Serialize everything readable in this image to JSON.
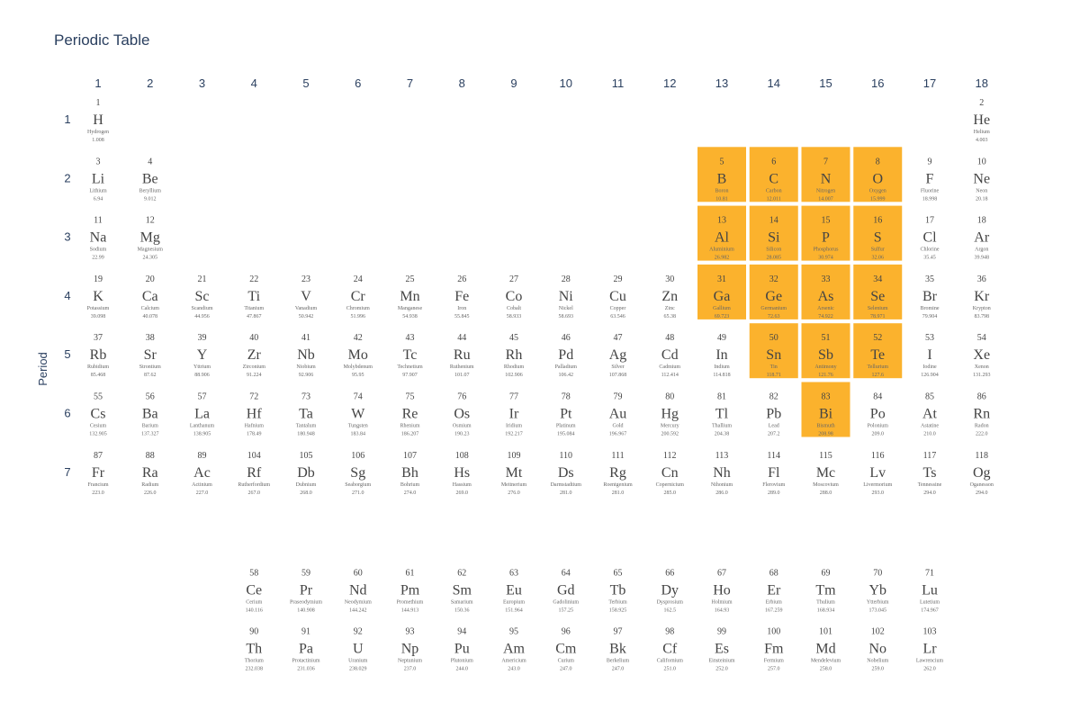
{
  "chart_data": {
    "type": "heatmap",
    "title": "Periodic Table",
    "ylabel": "Period",
    "x_ticks": [
      "1",
      "2",
      "3",
      "4",
      "5",
      "6",
      "7",
      "8",
      "9",
      "10",
      "11",
      "12",
      "13",
      "14",
      "15",
      "16",
      "17",
      "18"
    ],
    "y_ticks": [
      "1",
      "2",
      "3",
      "4",
      "5",
      "6",
      "7"
    ],
    "highlight_color": "#fbb22d",
    "text_color": "#444444",
    "fields": [
      "number",
      "symbol",
      "name",
      "mass",
      "group",
      "period_row",
      "highlighted"
    ],
    "elements": [
      [
        1,
        "H",
        "Hydrogen",
        "1.008",
        1,
        1,
        0
      ],
      [
        2,
        "He",
        "Helium",
        "4.003",
        18,
        1,
        0
      ],
      [
        3,
        "Li",
        "Lithium",
        "6.94",
        1,
        2,
        0
      ],
      [
        4,
        "Be",
        "Beryllium",
        "9.012",
        2,
        2,
        0
      ],
      [
        5,
        "B",
        "Boron",
        "10.81",
        13,
        2,
        1
      ],
      [
        6,
        "C",
        "Carbon",
        "12.011",
        14,
        2,
        1
      ],
      [
        7,
        "N",
        "Nitrogen",
        "14.007",
        15,
        2,
        1
      ],
      [
        8,
        "O",
        "Oxygen",
        "15.999",
        16,
        2,
        1
      ],
      [
        9,
        "F",
        "Fluorine",
        "18.998",
        17,
        2,
        0
      ],
      [
        10,
        "Ne",
        "Neon",
        "20.18",
        18,
        2,
        0
      ],
      [
        11,
        "Na",
        "Sodium",
        "22.99",
        1,
        3,
        0
      ],
      [
        12,
        "Mg",
        "Magnesium",
        "24.305",
        2,
        3,
        0
      ],
      [
        13,
        "Al",
        "Aluminium",
        "26.982",
        13,
        3,
        1
      ],
      [
        14,
        "Si",
        "Silicon",
        "28.085",
        14,
        3,
        1
      ],
      [
        15,
        "P",
        "Phosphorus",
        "30.974",
        15,
        3,
        1
      ],
      [
        16,
        "S",
        "Sulfur",
        "32.06",
        16,
        3,
        1
      ],
      [
        17,
        "Cl",
        "Chlorine",
        "35.45",
        17,
        3,
        0
      ],
      [
        18,
        "Ar",
        "Argon",
        "39.948",
        18,
        3,
        0
      ],
      [
        19,
        "K",
        "Potassium",
        "39.098",
        1,
        4,
        0
      ],
      [
        20,
        "Ca",
        "Calcium",
        "40.078",
        2,
        4,
        0
      ],
      [
        21,
        "Sc",
        "Scandium",
        "44.956",
        3,
        4,
        0
      ],
      [
        22,
        "Ti",
        "Titanium",
        "47.867",
        4,
        4,
        0
      ],
      [
        23,
        "V",
        "Vanadium",
        "50.942",
        5,
        4,
        0
      ],
      [
        24,
        "Cr",
        "Chromium",
        "51.996",
        6,
        4,
        0
      ],
      [
        25,
        "Mn",
        "Manganese",
        "54.938",
        7,
        4,
        0
      ],
      [
        26,
        "Fe",
        "Iron",
        "55.845",
        8,
        4,
        0
      ],
      [
        27,
        "Co",
        "Cobalt",
        "58.933",
        9,
        4,
        0
      ],
      [
        28,
        "Ni",
        "Nickel",
        "58.693",
        10,
        4,
        0
      ],
      [
        29,
        "Cu",
        "Copper",
        "63.546",
        11,
        4,
        0
      ],
      [
        30,
        "Zn",
        "Zinc",
        "65.38",
        12,
        4,
        0
      ],
      [
        31,
        "Ga",
        "Gallium",
        "69.723",
        13,
        4,
        1
      ],
      [
        32,
        "Ge",
        "Germanium",
        "72.63",
        14,
        4,
        1
      ],
      [
        33,
        "As",
        "Arsenic",
        "74.922",
        15,
        4,
        1
      ],
      [
        34,
        "Se",
        "Selenium",
        "78.971",
        16,
        4,
        1
      ],
      [
        35,
        "Br",
        "Bromine",
        "79.904",
        17,
        4,
        0
      ],
      [
        36,
        "Kr",
        "Krypton",
        "83.798",
        18,
        4,
        0
      ],
      [
        37,
        "Rb",
        "Rubidium",
        "85.468",
        1,
        5,
        0
      ],
      [
        38,
        "Sr",
        "Strontium",
        "87.62",
        2,
        5,
        0
      ],
      [
        39,
        "Y",
        "Yttrium",
        "88.906",
        3,
        5,
        0
      ],
      [
        40,
        "Zr",
        "Zirconium",
        "91.224",
        4,
        5,
        0
      ],
      [
        41,
        "Nb",
        "Niobium",
        "92.906",
        5,
        5,
        0
      ],
      [
        42,
        "Mo",
        "Molybdenum",
        "95.95",
        6,
        5,
        0
      ],
      [
        43,
        "Tc",
        "Technetium",
        "97.907",
        7,
        5,
        0
      ],
      [
        44,
        "Ru",
        "Ruthenium",
        "101.07",
        8,
        5,
        0
      ],
      [
        45,
        "Rh",
        "Rhodium",
        "102.906",
        9,
        5,
        0
      ],
      [
        46,
        "Pd",
        "Palladium",
        "106.42",
        10,
        5,
        0
      ],
      [
        47,
        "Ag",
        "Silver",
        "107.868",
        11,
        5,
        0
      ],
      [
        48,
        "Cd",
        "Cadmium",
        "112.414",
        12,
        5,
        0
      ],
      [
        49,
        "In",
        "Indium",
        "114.818",
        13,
        5,
        0
      ],
      [
        50,
        "Sn",
        "Tin",
        "118.71",
        14,
        5,
        1
      ],
      [
        51,
        "Sb",
        "Antimony",
        "121.76",
        15,
        5,
        1
      ],
      [
        52,
        "Te",
        "Tellurium",
        "127.6",
        16,
        5,
        1
      ],
      [
        53,
        "I",
        "Iodine",
        "126.904",
        17,
        5,
        0
      ],
      [
        54,
        "Xe",
        "Xenon",
        "131.293",
        18,
        5,
        0
      ],
      [
        55,
        "Cs",
        "Cesium",
        "132.905",
        1,
        6,
        0
      ],
      [
        56,
        "Ba",
        "Barium",
        "137.327",
        2,
        6,
        0
      ],
      [
        57,
        "La",
        "Lanthanum",
        "138.905",
        3,
        6,
        0
      ],
      [
        72,
        "Hf",
        "Hafnium",
        "178.49",
        4,
        6,
        0
      ],
      [
        73,
        "Ta",
        "Tantalum",
        "180.948",
        5,
        6,
        0
      ],
      [
        74,
        "W",
        "Tungsten",
        "183.84",
        6,
        6,
        0
      ],
      [
        75,
        "Re",
        "Rhenium",
        "186.207",
        7,
        6,
        0
      ],
      [
        76,
        "Os",
        "Osmium",
        "190.23",
        8,
        6,
        0
      ],
      [
        77,
        "Ir",
        "Iridium",
        "192.217",
        9,
        6,
        0
      ],
      [
        78,
        "Pt",
        "Platinum",
        "195.084",
        10,
        6,
        0
      ],
      [
        79,
        "Au",
        "Gold",
        "196.967",
        11,
        6,
        0
      ],
      [
        80,
        "Hg",
        "Mercury",
        "200.592",
        12,
        6,
        0
      ],
      [
        81,
        "Tl",
        "Thallium",
        "204.38",
        13,
        6,
        0
      ],
      [
        82,
        "Pb",
        "Lead",
        "207.2",
        14,
        6,
        0
      ],
      [
        83,
        "Bi",
        "Bismuth",
        "208.98",
        15,
        6,
        1
      ],
      [
        84,
        "Po",
        "Polonium",
        "209.0",
        16,
        6,
        0
      ],
      [
        85,
        "At",
        "Astatine",
        "210.0",
        17,
        6,
        0
      ],
      [
        86,
        "Rn",
        "Radon",
        "222.0",
        18,
        6,
        0
      ],
      [
        87,
        "Fr",
        "Francium",
        "223.0",
        1,
        7,
        0
      ],
      [
        88,
        "Ra",
        "Radium",
        "226.0",
        2,
        7,
        0
      ],
      [
        89,
        "Ac",
        "Actinium",
        "227.0",
        3,
        7,
        0
      ],
      [
        104,
        "Rf",
        "Rutherfordium",
        "267.0",
        4,
        7,
        0
      ],
      [
        105,
        "Db",
        "Dubnium",
        "268.0",
        5,
        7,
        0
      ],
      [
        106,
        "Sg",
        "Seaborgium",
        "271.0",
        6,
        7,
        0
      ],
      [
        107,
        "Bh",
        "Bohrium",
        "274.0",
        7,
        7,
        0
      ],
      [
        108,
        "Hs",
        "Hassium",
        "269.0",
        8,
        7,
        0
      ],
      [
        109,
        "Mt",
        "Meitnerium",
        "276.0",
        9,
        7,
        0
      ],
      [
        110,
        "Ds",
        "Darmstadtium",
        "281.0",
        10,
        7,
        0
      ],
      [
        111,
        "Rg",
        "Roentgenium",
        "281.0",
        11,
        7,
        0
      ],
      [
        112,
        "Cn",
        "Copernicium",
        "285.0",
        12,
        7,
        0
      ],
      [
        113,
        "Nh",
        "Nihonium",
        "286.0",
        13,
        7,
        0
      ],
      [
        114,
        "Fl",
        "Flerovium",
        "289.0",
        14,
        7,
        0
      ],
      [
        115,
        "Mc",
        "Moscovium",
        "288.0",
        15,
        7,
        0
      ],
      [
        116,
        "Lv",
        "Livermorium",
        "293.0",
        16,
        7,
        0
      ],
      [
        117,
        "Ts",
        "Tennessine",
        "294.0",
        17,
        7,
        0
      ],
      [
        118,
        "Og",
        "Oganesson",
        "294.0",
        18,
        7,
        0
      ],
      [
        58,
        "Ce",
        "Cerium",
        "140.116",
        4,
        9,
        0
      ],
      [
        59,
        "Pr",
        "Praseodymium",
        "140.908",
        5,
        9,
        0
      ],
      [
        60,
        "Nd",
        "Neodymium",
        "144.242",
        6,
        9,
        0
      ],
      [
        61,
        "Pm",
        "Promethium",
        "144.913",
        7,
        9,
        0
      ],
      [
        62,
        "Sm",
        "Samarium",
        "150.36",
        8,
        9,
        0
      ],
      [
        63,
        "Eu",
        "Europium",
        "151.964",
        9,
        9,
        0
      ],
      [
        64,
        "Gd",
        "Gadolinium",
        "157.25",
        10,
        9,
        0
      ],
      [
        65,
        "Tb",
        "Terbium",
        "158.925",
        11,
        9,
        0
      ],
      [
        66,
        "Dy",
        "Dysprosium",
        "162.5",
        12,
        9,
        0
      ],
      [
        67,
        "Ho",
        "Holmium",
        "164.93",
        13,
        9,
        0
      ],
      [
        68,
        "Er",
        "Erbium",
        "167.259",
        14,
        9,
        0
      ],
      [
        69,
        "Tm",
        "Thulium",
        "168.934",
        15,
        9,
        0
      ],
      [
        70,
        "Yb",
        "Ytterbium",
        "173.045",
        16,
        9,
        0
      ],
      [
        71,
        "Lu",
        "Lutetium",
        "174.967",
        17,
        9,
        0
      ],
      [
        90,
        "Th",
        "Thorium",
        "232.038",
        4,
        10,
        0
      ],
      [
        91,
        "Pa",
        "Protactinium",
        "231.036",
        5,
        10,
        0
      ],
      [
        92,
        "U",
        "Uranium",
        "238.029",
        6,
        10,
        0
      ],
      [
        93,
        "Np",
        "Neptunium",
        "237.0",
        7,
        10,
        0
      ],
      [
        94,
        "Pu",
        "Plutonium",
        "244.0",
        8,
        10,
        0
      ],
      [
        95,
        "Am",
        "Americium",
        "243.0",
        9,
        10,
        0
      ],
      [
        96,
        "Cm",
        "Curium",
        "247.0",
        10,
        10,
        0
      ],
      [
        97,
        "Bk",
        "Berkelium",
        "247.0",
        11,
        10,
        0
      ],
      [
        98,
        "Cf",
        "Californium",
        "251.0",
        12,
        10,
        0
      ],
      [
        99,
        "Es",
        "Einsteinium",
        "252.0",
        13,
        10,
        0
      ],
      [
        100,
        "Fm",
        "Fermium",
        "257.0",
        14,
        10,
        0
      ],
      [
        101,
        "Md",
        "Mendelevium",
        "258.0",
        15,
        10,
        0
      ],
      [
        102,
        "No",
        "Nobelium",
        "259.0",
        16,
        10,
        0
      ],
      [
        103,
        "Lr",
        "Lawrencium",
        "262.0",
        17,
        10,
        0
      ]
    ]
  }
}
